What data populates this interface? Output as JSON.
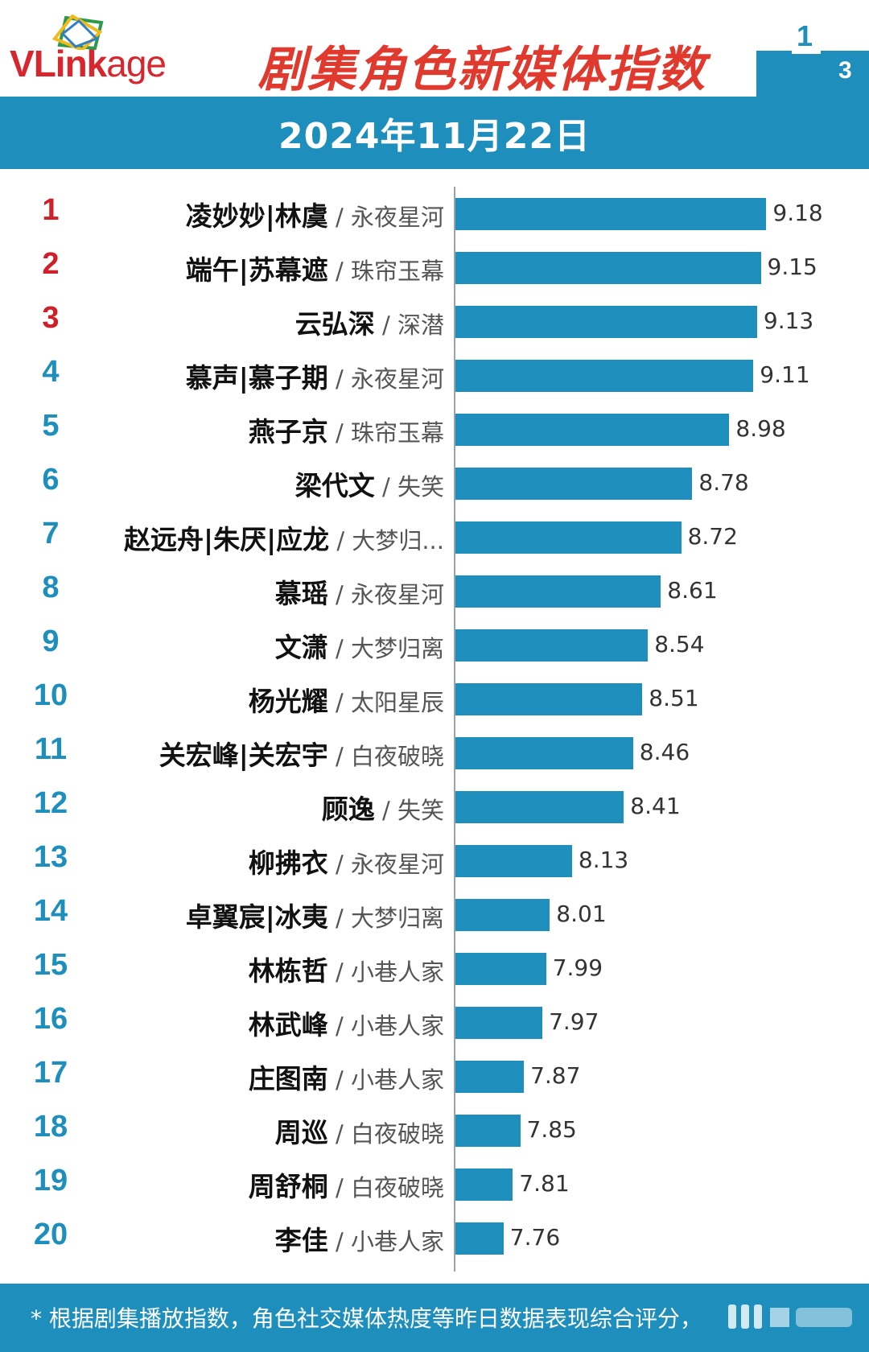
{
  "brand": {
    "logo_text_v": "V",
    "logo_text_link": "Link",
    "logo_text_age": "age"
  },
  "title": "剧集角色新媒体指数",
  "date": "2024年11月22日",
  "footnote": "* 根据剧集播放指数，角色社交媒体热度等昨日数据表现综合评分，",
  "colors": {
    "accent": "#1e8fbd",
    "title_red": "#e03a2f",
    "rank_top": "#d01f28"
  },
  "chart_data": {
    "type": "bar",
    "orientation": "horizontal",
    "title": "剧集角色新媒体指数",
    "xlim": [
      7.5,
      9.25
    ],
    "categories": [
      {
        "rank": "1",
        "character": "凌妙妙|林虞",
        "show": "永夜星河"
      },
      {
        "rank": "2",
        "character": "端午|苏幕遮",
        "show": "珠帘玉幕"
      },
      {
        "rank": "3",
        "character": "云弘深",
        "show": "深潜"
      },
      {
        "rank": "4",
        "character": "慕声|慕子期",
        "show": "永夜星河"
      },
      {
        "rank": "5",
        "character": "燕子京",
        "show": "珠帘玉幕"
      },
      {
        "rank": "6",
        "character": "梁代文",
        "show": "失笑"
      },
      {
        "rank": "7",
        "character": "赵远舟|朱厌|应龙",
        "show": "大梦归..."
      },
      {
        "rank": "8",
        "character": "慕瑶",
        "show": "永夜星河"
      },
      {
        "rank": "9",
        "character": "文潇",
        "show": "大梦归离"
      },
      {
        "rank": "10",
        "character": "杨光耀",
        "show": "太阳星辰"
      },
      {
        "rank": "11",
        "character": "关宏峰|关宏宇",
        "show": "白夜破晓"
      },
      {
        "rank": "12",
        "character": "顾逸",
        "show": "失笑"
      },
      {
        "rank": "13",
        "character": "柳拂衣",
        "show": "永夜星河"
      },
      {
        "rank": "14",
        "character": "卓翼宸|冰夷",
        "show": "大梦归离"
      },
      {
        "rank": "15",
        "character": "林栋哲",
        "show": "小巷人家"
      },
      {
        "rank": "16",
        "character": "林武峰",
        "show": "小巷人家"
      },
      {
        "rank": "17",
        "character": "庄图南",
        "show": "小巷人家"
      },
      {
        "rank": "18",
        "character": "周巡",
        "show": "白夜破晓"
      },
      {
        "rank": "19",
        "character": "周舒桐",
        "show": "白夜破晓"
      },
      {
        "rank": "20",
        "character": "李佳",
        "show": "小巷人家"
      }
    ],
    "values": [
      "9.18",
      "9.15",
      "9.13",
      "9.11",
      "8.98",
      "8.78",
      "8.72",
      "8.61",
      "8.54",
      "8.51",
      "8.46",
      "8.41",
      "8.13",
      "8.01",
      "7.99",
      "7.97",
      "7.87",
      "7.85",
      "7.81",
      "7.76"
    ]
  }
}
